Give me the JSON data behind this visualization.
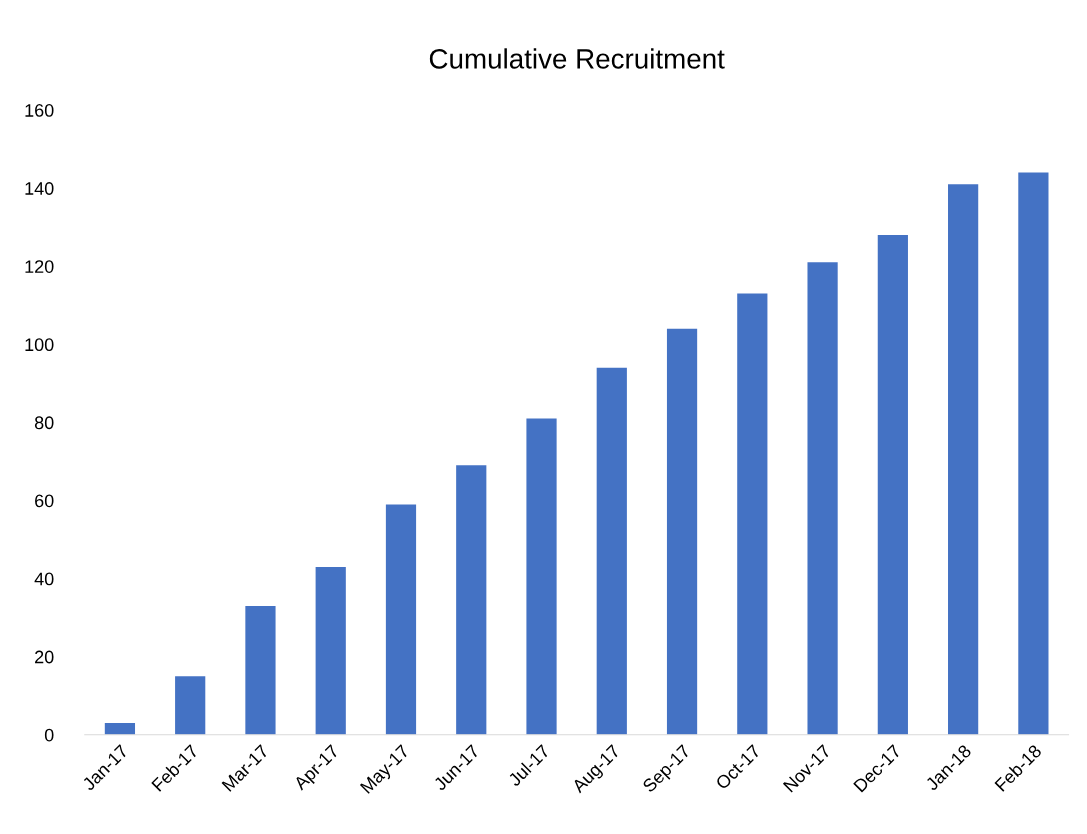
{
  "chart_data": {
    "type": "bar",
    "title": "Cumulative Recruitment",
    "categories": [
      "Jan-17",
      "Feb-17",
      "Mar-17",
      "Apr-17",
      "May-17",
      "Jun-17",
      "Jul-17",
      "Aug-17",
      "Sep-17",
      "Oct-17",
      "Nov-17",
      "Dec-17",
      "Jan-18",
      "Feb-18"
    ],
    "values": [
      3,
      15,
      33,
      43,
      59,
      69,
      81,
      94,
      104,
      113,
      121,
      128,
      141,
      144
    ],
    "color": "#4472c4",
    "ylim": [
      0,
      160
    ],
    "yticks": [
      0,
      20,
      40,
      60,
      80,
      100,
      120,
      140,
      160
    ],
    "grid": false
  }
}
